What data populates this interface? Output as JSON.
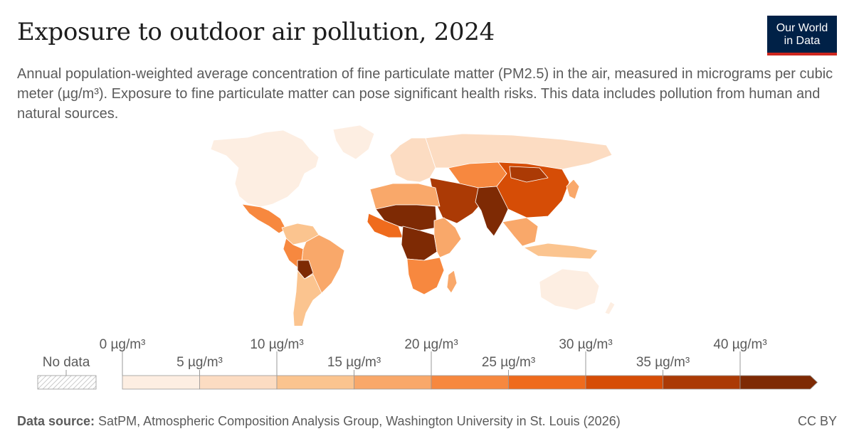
{
  "header": {
    "title": "Exposure to outdoor air pollution, 2024",
    "subtitle": "Annual population-weighted average concentration of fine particulate matter (PM2.5) in the air, measured in micrograms per cubic meter (µg/m³). Exposure to fine particulate matter can pose significant health risks. This data includes pollution from human and natural sources."
  },
  "logo": {
    "line1": "Our World",
    "line2": "in Data"
  },
  "legend": {
    "no_data_label": "No data",
    "tick_labels": [
      "0 µg/m³",
      "5 µg/m³",
      "10 µg/m³",
      "15 µg/m³",
      "20 µg/m³",
      "25 µg/m³",
      "30 µg/m³",
      "35 µg/m³",
      "40 µg/m³"
    ],
    "bins": [
      {
        "from": 0,
        "to": 5,
        "color": "#fdeee2"
      },
      {
        "from": 5,
        "to": 10,
        "color": "#fcdcc2"
      },
      {
        "from": 10,
        "to": 15,
        "color": "#fbc48f"
      },
      {
        "from": 15,
        "to": 20,
        "color": "#f9a86a"
      },
      {
        "from": 20,
        "to": 25,
        "color": "#f7883f"
      },
      {
        "from": 25,
        "to": 30,
        "color": "#ef6b1d"
      },
      {
        "from": 30,
        "to": 35,
        "color": "#d64d06"
      },
      {
        "from": 35,
        "to": 40,
        "color": "#ab3a05"
      },
      {
        "from": 40,
        "to": null,
        "color": "#7e2a04"
      }
    ]
  },
  "regions": [
    {
      "name": "North America",
      "color": "#fdeee2"
    },
    {
      "name": "Central America",
      "color": "#f7883f"
    },
    {
      "name": "Colombia and Venezuela",
      "color": "#fbc48f"
    },
    {
      "name": "Brazil",
      "color": "#f9a86a"
    },
    {
      "name": "Peru",
      "color": "#f7883f"
    },
    {
      "name": "Bolivia",
      "color": "#7e2a04"
    },
    {
      "name": "Southern Cone",
      "color": "#fbc48f"
    },
    {
      "name": "Greenland",
      "color": "#fdeee2"
    },
    {
      "name": "Europe",
      "color": "#fcdcc2"
    },
    {
      "name": "Russia",
      "color": "#fcdcc2"
    },
    {
      "name": "Central Asia",
      "color": "#f7883f"
    },
    {
      "name": "China",
      "color": "#d64d06"
    },
    {
      "name": "Mongolia",
      "color": "#ab3a05"
    },
    {
      "name": "Middle East",
      "color": "#ab3a05"
    },
    {
      "name": "India",
      "color": "#7e2a04"
    },
    {
      "name": "Southeast Asia",
      "color": "#f9a86a"
    },
    {
      "name": "Indonesia",
      "color": "#fbc48f"
    },
    {
      "name": "North Africa",
      "color": "#f9a86a"
    },
    {
      "name": "Sahel",
      "color": "#7e2a04"
    },
    {
      "name": "West Africa",
      "color": "#ef6b1d"
    },
    {
      "name": "Central Africa",
      "color": "#7e2a04"
    },
    {
      "name": "East Africa",
      "color": "#f9a86a"
    },
    {
      "name": "Southern Africa",
      "color": "#f7883f"
    },
    {
      "name": "Madagascar",
      "color": "#f9a86a"
    },
    {
      "name": "Australia",
      "color": "#fdeee2"
    },
    {
      "name": "New Zealand",
      "color": "#fdeee2"
    },
    {
      "name": "Japan and Korea",
      "color": "#f9a86a"
    }
  ],
  "footer": {
    "source_label": "Data source:",
    "source_text": " SatPM, Atmospheric Composition Analysis Group, Washington University in St. Louis (2026)",
    "license": "CC BY"
  }
}
